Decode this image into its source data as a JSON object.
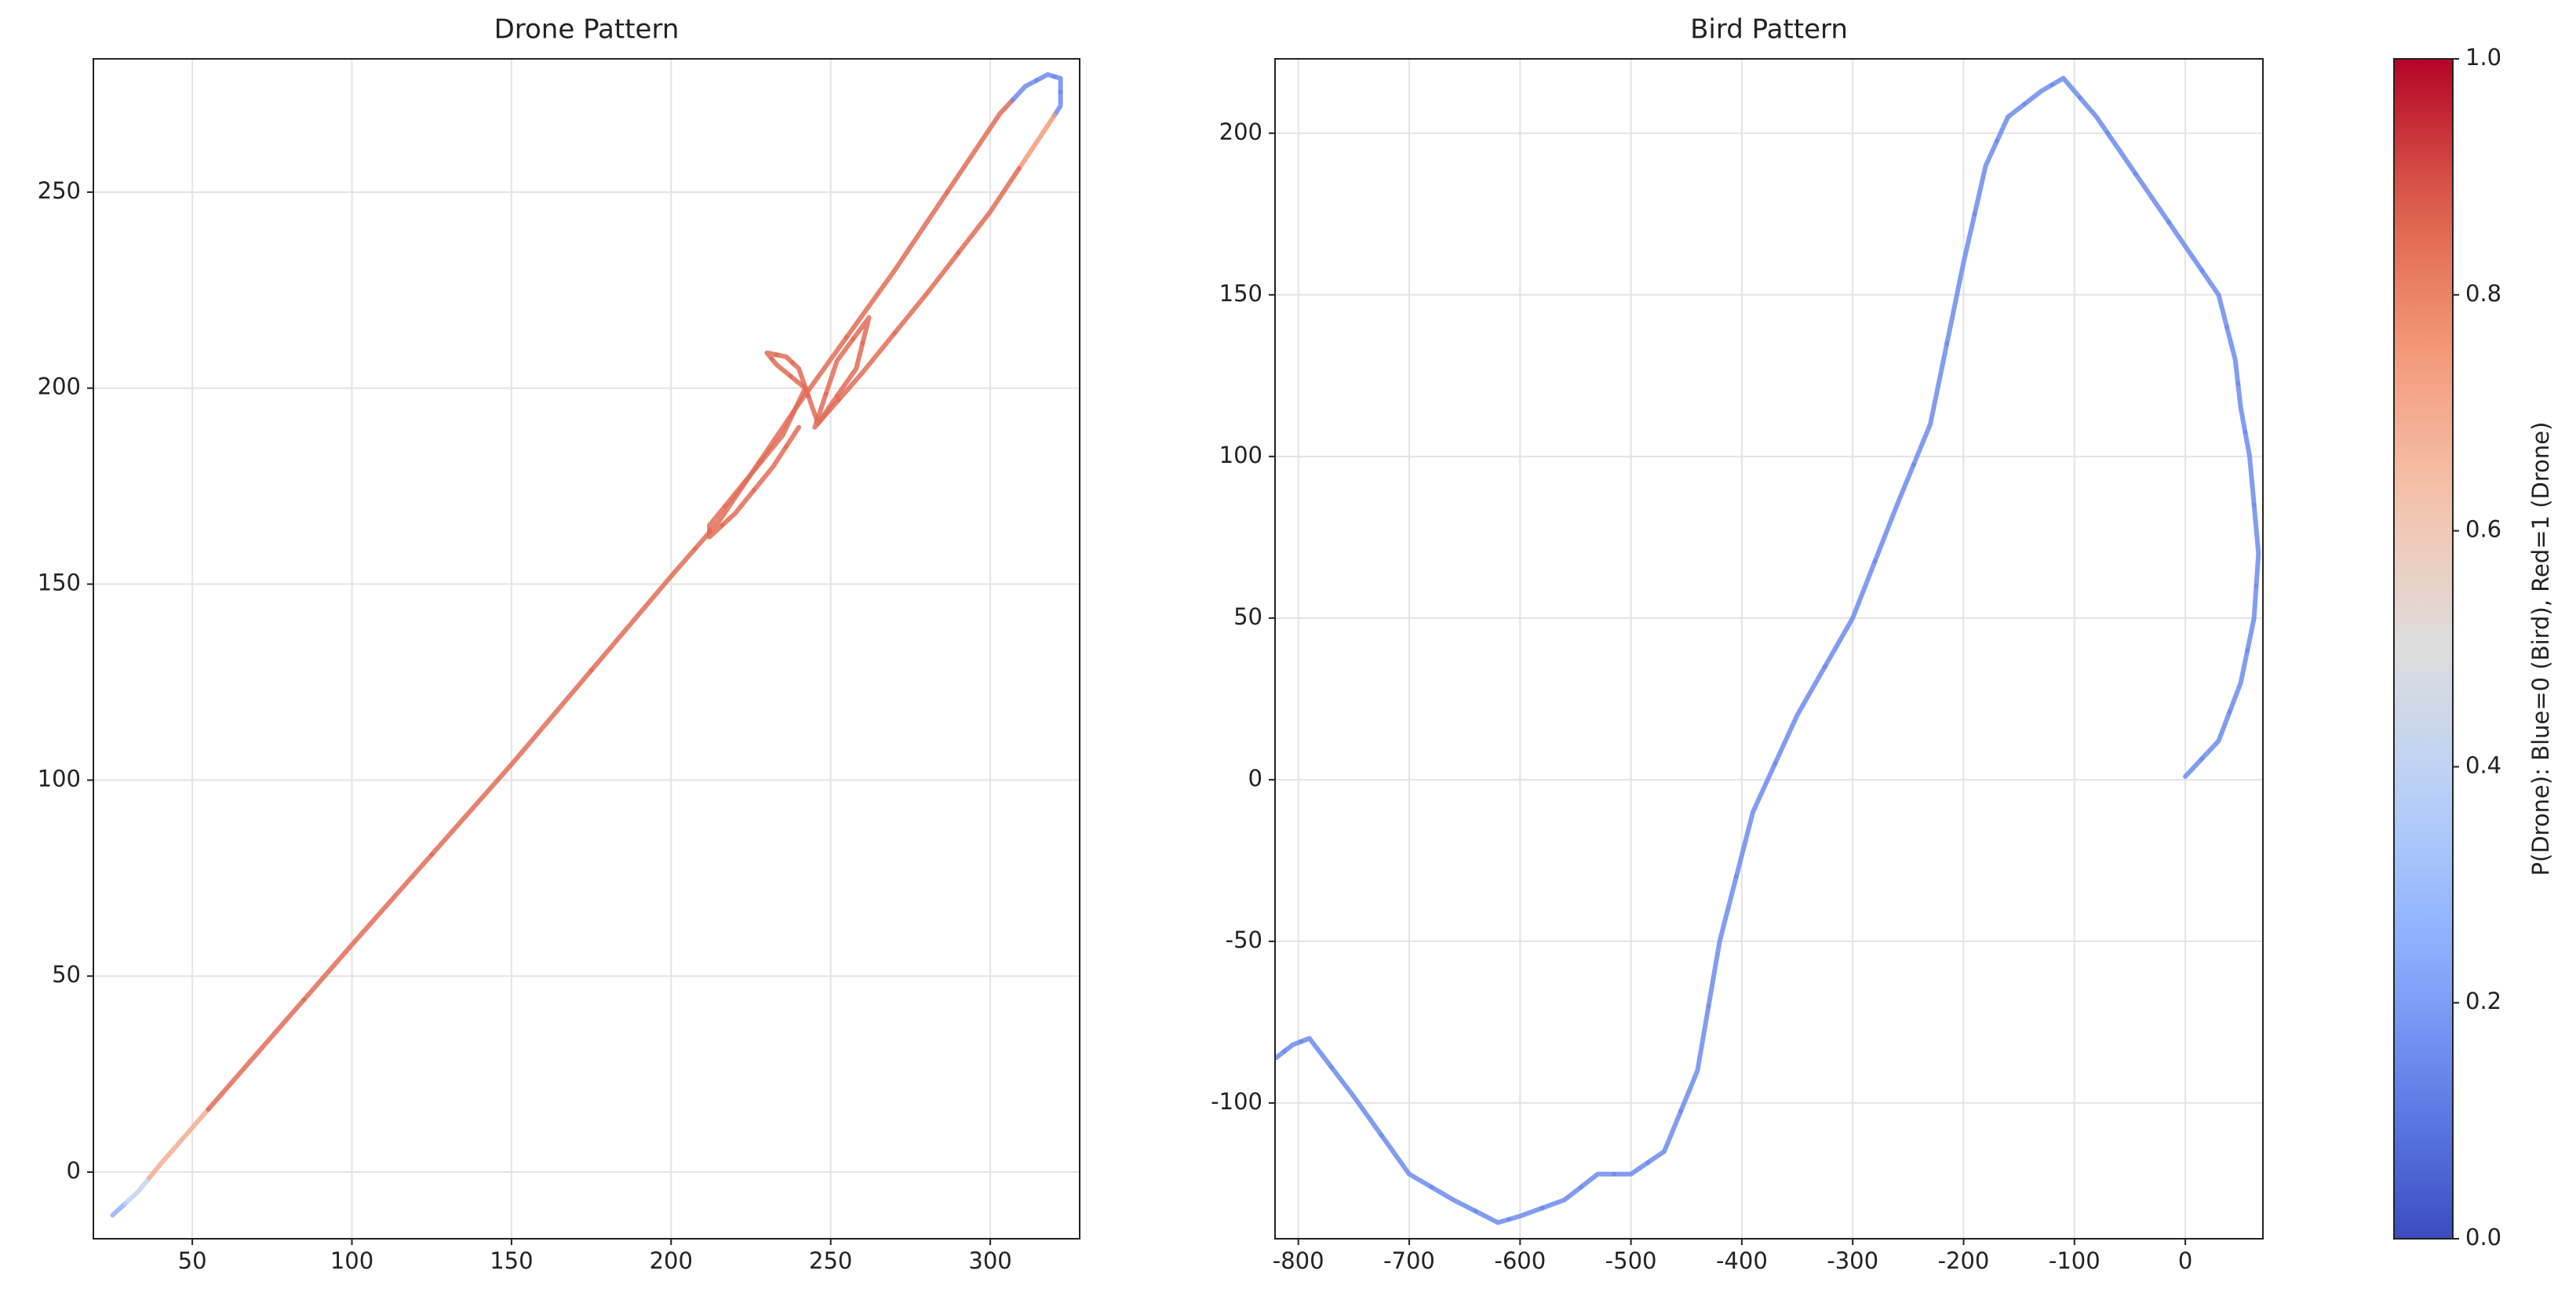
{
  "chart_data": [
    {
      "type": "line",
      "title": "Drone Pattern",
      "colormap": "coolwarm",
      "grid": true,
      "x": [
        25,
        33,
        40,
        70,
        100,
        150,
        200,
        215,
        240,
        270,
        303,
        311,
        318,
        322,
        322,
        318,
        300,
        280,
        260,
        245,
        252,
        262,
        258,
        246,
        240,
        236,
        230,
        233,
        242,
        235,
        222,
        212,
        212,
        220,
        232,
        240
      ],
      "y": [
        -11,
        -5,
        2,
        30,
        58,
        104,
        152,
        166,
        196,
        230,
        270,
        277,
        280,
        279,
        272,
        267,
        245,
        224,
        204,
        190,
        207,
        218,
        205,
        191,
        205,
        208,
        209,
        206,
        200,
        188,
        175,
        165,
        162,
        168,
        180,
        190
      ],
      "p": [
        0.25,
        0.4,
        0.7,
        0.85,
        0.85,
        0.85,
        0.85,
        0.85,
        0.85,
        0.85,
        0.85,
        0.15,
        0.15,
        0.15,
        0.15,
        0.75,
        0.85,
        0.85,
        0.85,
        0.85,
        0.85,
        0.85,
        0.85,
        0.85,
        0.85,
        0.85,
        0.85,
        0.85,
        0.85,
        0.85,
        0.85,
        0.85,
        0.85,
        0.85,
        0.85,
        0.85
      ],
      "xlim": [
        19,
        328
      ],
      "ylim": [
        -17,
        284
      ],
      "xticks": [
        50,
        100,
        150,
        200,
        250,
        300
      ],
      "yticks": [
        0,
        50,
        100,
        150,
        200,
        250
      ]
    },
    {
      "type": "line",
      "title": "Bird Pattern",
      "colormap": "coolwarm",
      "grid": true,
      "x": [
        0,
        30,
        50,
        62,
        66,
        58,
        50,
        45,
        30,
        0,
        -30,
        -60,
        -80,
        -110,
        -130,
        -160,
        -180,
        -200,
        -230,
        -260,
        -300,
        -350,
        -390,
        -420,
        -440,
        -470,
        -500,
        -530,
        -560,
        -600,
        -620,
        -660,
        -700,
        -750,
        -790,
        -805,
        -820
      ],
      "y": [
        1,
        12,
        30,
        50,
        70,
        100,
        115,
        130,
        150,
        165,
        180,
        195,
        205,
        217,
        213,
        205,
        190,
        160,
        110,
        85,
        50,
        20,
        -10,
        -50,
        -90,
        -115,
        -122,
        -122,
        -130,
        -135,
        -137,
        -130,
        -122,
        -98,
        -80,
        -82,
        -86
      ],
      "p": [
        0.15,
        0.15,
        0.15,
        0.15,
        0.15,
        0.15,
        0.15,
        0.15,
        0.15,
        0.15,
        0.15,
        0.15,
        0.15,
        0.15,
        0.15,
        0.15,
        0.15,
        0.15,
        0.15,
        0.15,
        0.15,
        0.15,
        0.15,
        0.15,
        0.15,
        0.15,
        0.15,
        0.15,
        0.15,
        0.15,
        0.15,
        0.15,
        0.15,
        0.15,
        0.15,
        0.15,
        0.15
      ],
      "xlim": [
        -821,
        70
      ],
      "ylim": [
        -142,
        223
      ],
      "xticks": [
        -800,
        -700,
        -600,
        -500,
        -400,
        -300,
        -200,
        -100,
        0
      ],
      "yticks": [
        -100,
        -50,
        0,
        50,
        100,
        150,
        200
      ]
    },
    {
      "type": "colorbar",
      "label": "P(Drone): Blue=0 (Bird), Red=1 (Drone)",
      "colormap": "coolwarm",
      "ylim": [
        0,
        1
      ],
      "yticks": [
        {
          "value": 0,
          "label": "0.0"
        },
        {
          "value": 0.2,
          "label": "0.2"
        },
        {
          "value": 0.4,
          "label": "0.4"
        },
        {
          "value": 0.6,
          "label": "0.6"
        },
        {
          "value": 0.8,
          "label": "0.8"
        },
        {
          "value": 1,
          "label": "1.0"
        }
      ]
    }
  ]
}
